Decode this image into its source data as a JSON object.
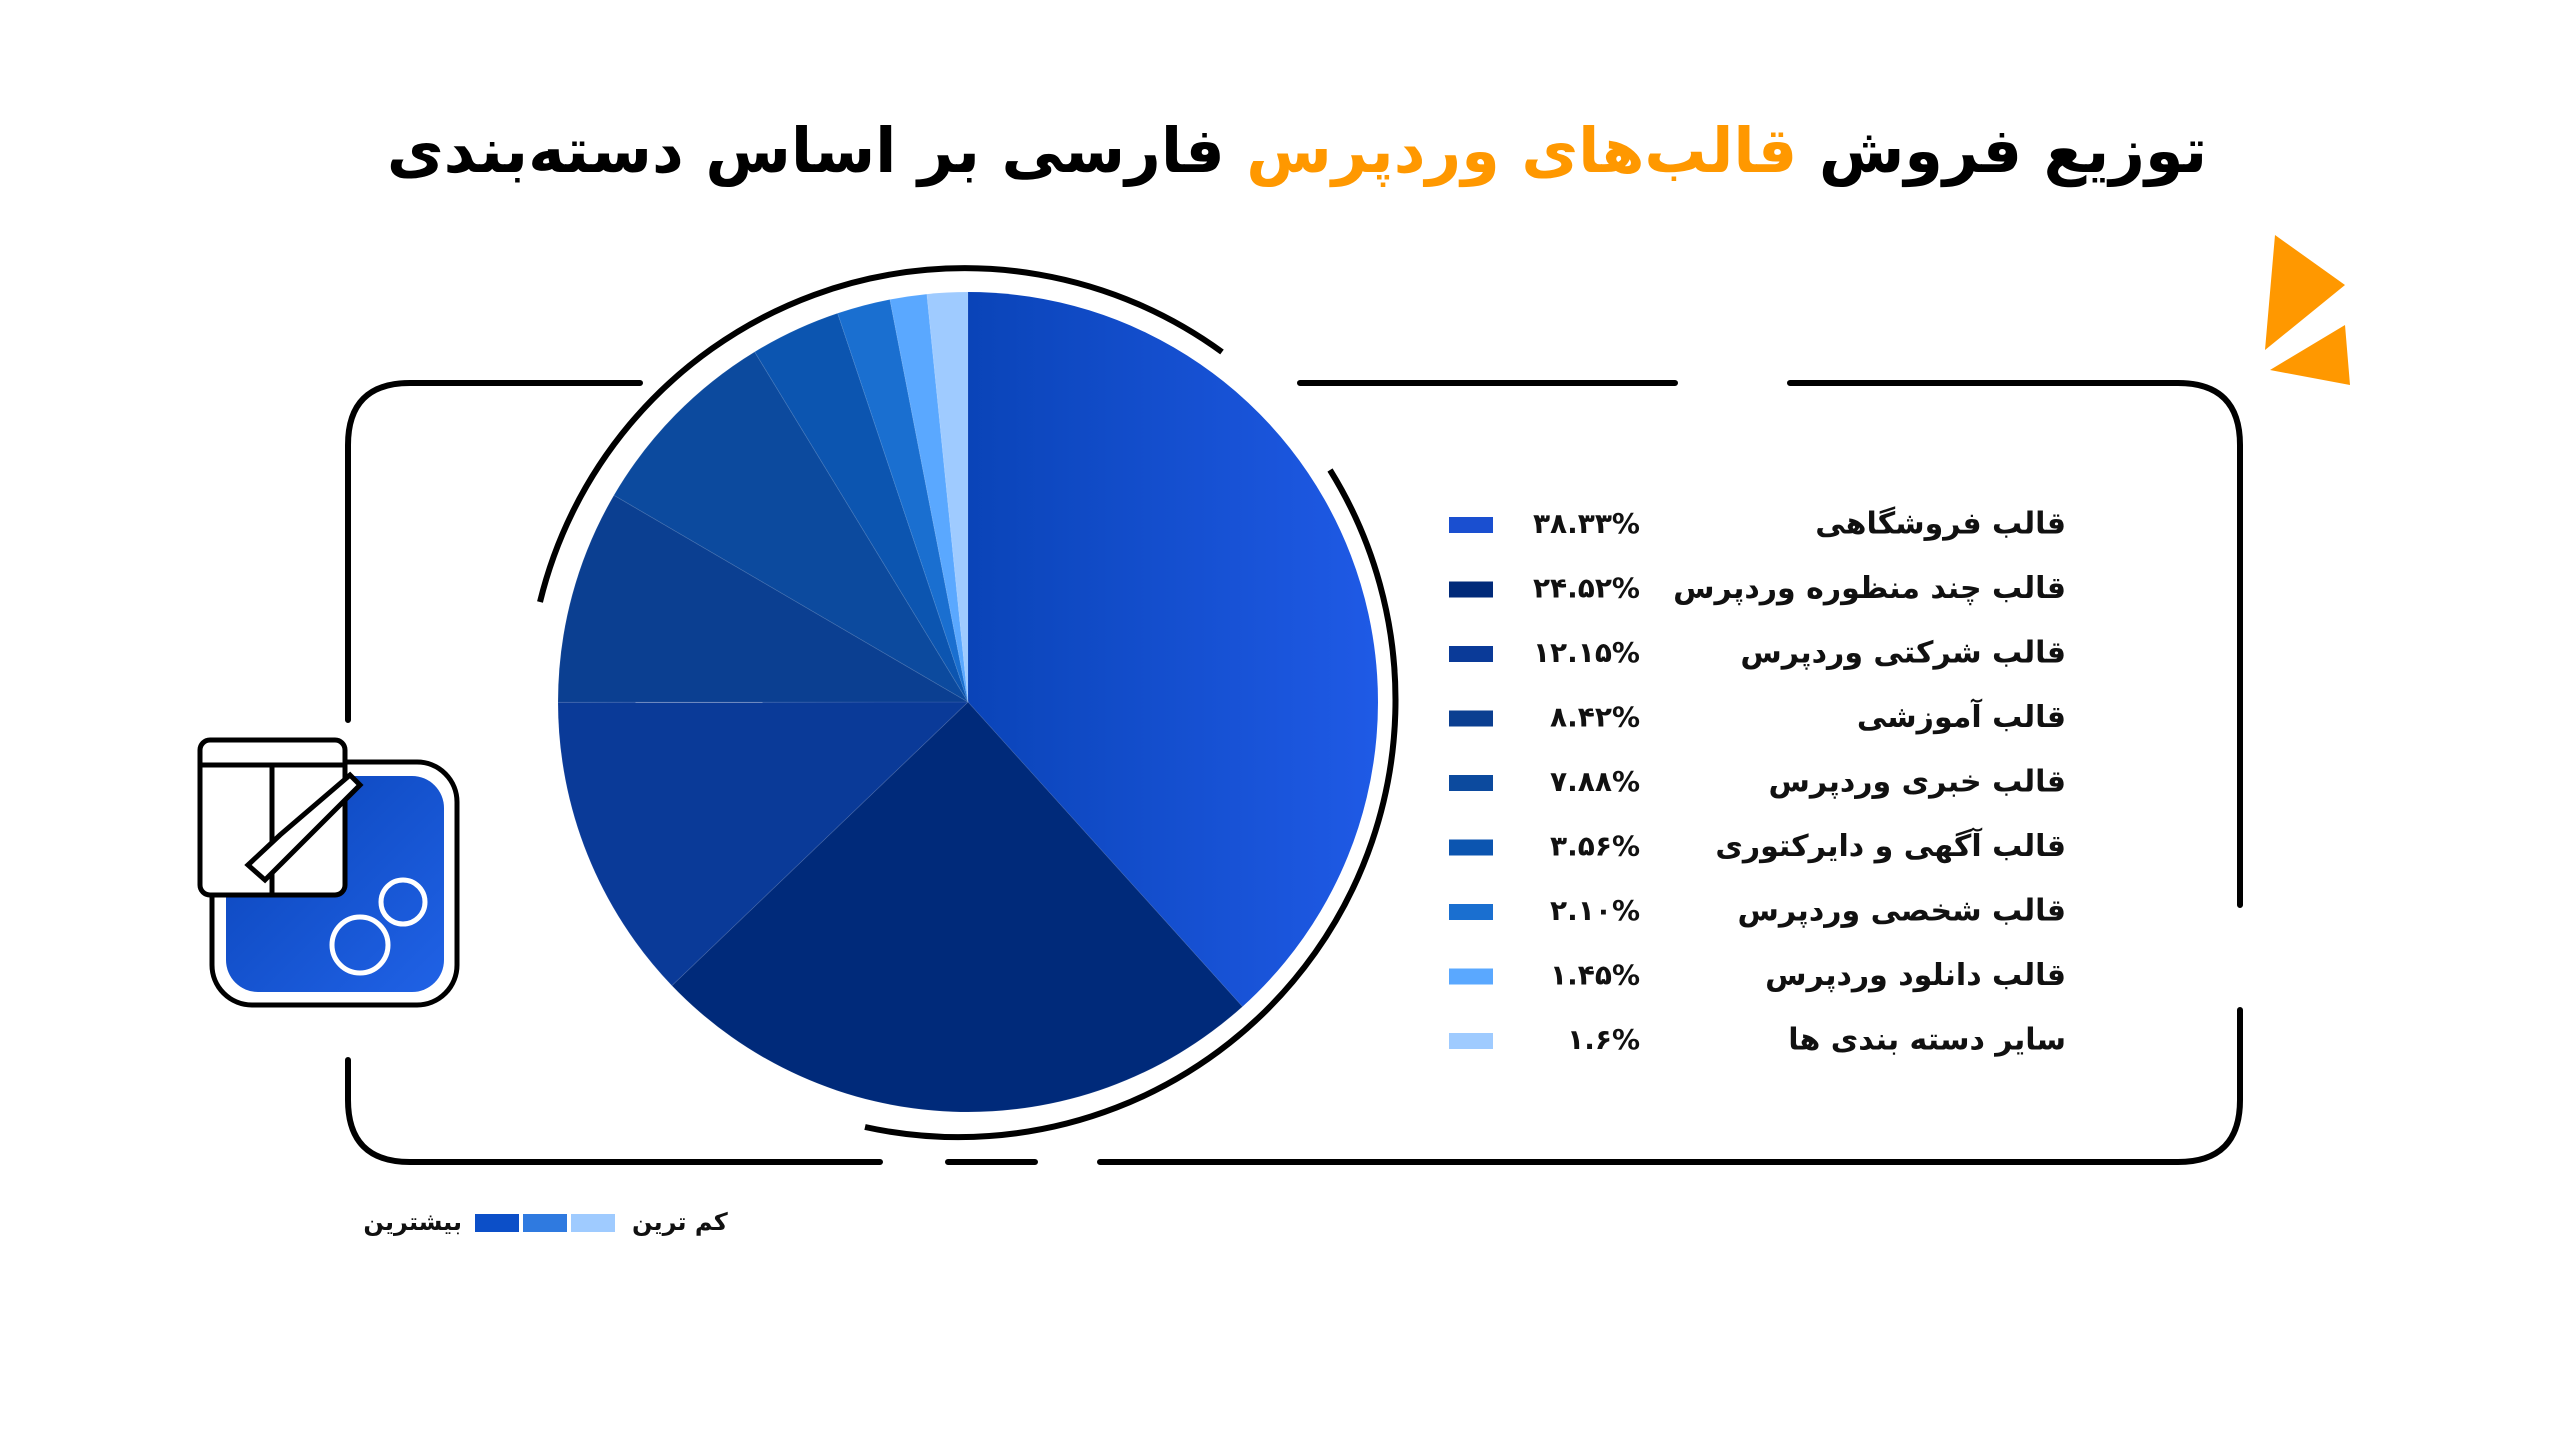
{
  "chart_data": {
    "type": "pie",
    "title": [
      "توزیع فروش",
      "قالب‌های وردپرس",
      "فارسی بر اساس دسته‌بندی"
    ],
    "title_color": "#000000",
    "title_highlight_color": "#ff9800",
    "categories": [
      "قالب فروشگاهی",
      "قالب چند منظوره وردپرس",
      "قالب شرکتی وردپرس",
      "قالب آموزشی",
      "قالب خبری وردپرس",
      "قالب آگهی و دایرکتوری",
      "قالب شخصی وردپرس",
      "قالب دانلود وردپرس",
      "سایر دسته بندی ها"
    ],
    "values": [
      38.33,
      24.52,
      12.15,
      8.42,
      7.88,
      3.56,
      2.1,
      1.45,
      1.6
    ],
    "value_labels": [
      "۳۸.۳۳%",
      "۲۴.۵۲%",
      "۱۲.۱۵%",
      "۸.۴۲%",
      "۷.۸۸%",
      "۳.۵۶%",
      "۲.۱۰%",
      "۱.۴۵%",
      "۱.۶%"
    ],
    "colors": [
      "#1a4fd0",
      "#002a7a",
      "#0a3a98",
      "#0b3f91",
      "#0c4a9e",
      "#0c55b0",
      "#1a6fd0",
      "#5aa8ff",
      "#9fcbff"
    ],
    "scale_legend": {
      "most": "بیشترین",
      "least": "کم ترین",
      "colors": [
        "#0c4fc8",
        "#2f7ae0",
        "#9fcbff"
      ]
    }
  }
}
